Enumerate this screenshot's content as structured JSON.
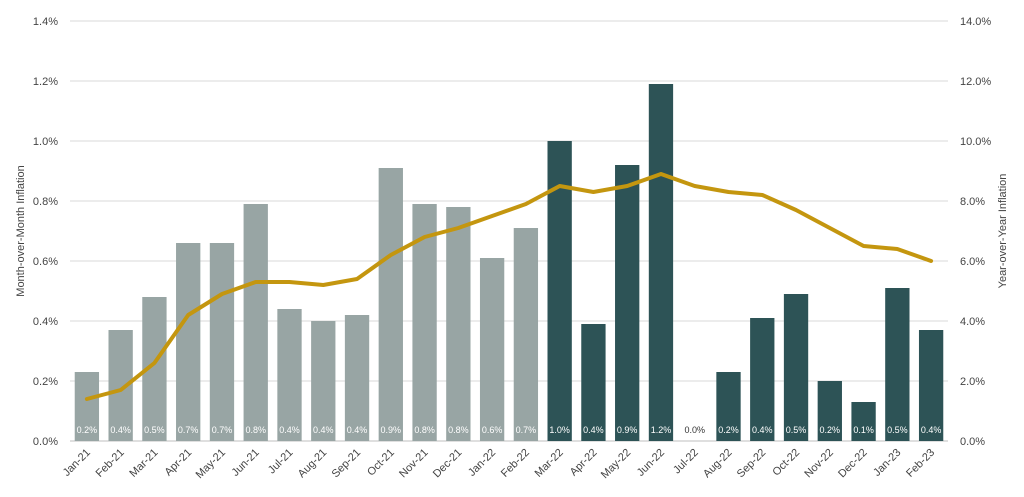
{
  "chart_data": {
    "type": "bar",
    "combo": "bar + line (dual axis)",
    "categories": [
      "Jan-21",
      "Feb-21",
      "Mar-21",
      "Apr-21",
      "May-21",
      "Jun-21",
      "Jul-21",
      "Aug-21",
      "Sep-21",
      "Oct-21",
      "Nov-21",
      "Dec-21",
      "Jan-22",
      "Feb-22",
      "Mar-22",
      "Apr-22",
      "May-22",
      "Jun-22",
      "Jul-22",
      "Aug-22",
      "Sep-22",
      "Oct-22",
      "Nov-22",
      "Dec-22",
      "Jan-23",
      "Feb-23"
    ],
    "series": [
      {
        "type": "bar",
        "axis": "left",
        "values": [
          0.23,
          0.37,
          0.48,
          0.66,
          0.66,
          0.79,
          0.44,
          0.4,
          0.42,
          0.91,
          0.79,
          0.78,
          0.61,
          0.71,
          1.0,
          0.39,
          0.92,
          1.19,
          0.0,
          0.23,
          0.41,
          0.49,
          0.2,
          0.13,
          0.51,
          0.37
        ],
        "labels": [
          "0.2%",
          "0.4%",
          "0.5%",
          "0.7%",
          "0.7%",
          "0.8%",
          "0.4%",
          "0.4%",
          "0.4%",
          "0.9%",
          "0.8%",
          "0.8%",
          "0.6%",
          "0.7%",
          "1.0%",
          "0.4%",
          "0.9%",
          "1.2%",
          "0.0%",
          "0.2%",
          "0.4%",
          "0.5%",
          "0.2%",
          "0.1%",
          "0.5%",
          "0.4%"
        ],
        "colors": [
          "#98a5a4",
          "#98a5a4",
          "#98a5a4",
          "#98a5a4",
          "#98a5a4",
          "#98a5a4",
          "#98a5a4",
          "#98a5a4",
          "#98a5a4",
          "#98a5a4",
          "#98a5a4",
          "#98a5a4",
          "#98a5a4",
          "#98a5a4",
          "#2d5356",
          "#2d5356",
          "#2d5356",
          "#2d5356",
          "#2d5356",
          "#2d5356",
          "#2d5356",
          "#2d5356",
          "#2d5356",
          "#2d5356",
          "#2d5356",
          "#2d5356"
        ]
      },
      {
        "type": "line",
        "axis": "right",
        "values": [
          1.4,
          1.7,
          2.6,
          4.2,
          4.9,
          5.3,
          5.3,
          5.2,
          5.4,
          6.2,
          6.8,
          7.1,
          7.5,
          7.9,
          8.5,
          8.3,
          8.5,
          8.9,
          8.5,
          8.3,
          8.2,
          7.7,
          7.1,
          6.5,
          6.4,
          6.0
        ],
        "color": "#c4960f"
      }
    ],
    "y_left": {
      "label": "Month-over-Month Inflation",
      "ylim": [
        0,
        1.4
      ],
      "ticks": [
        "0.0%",
        "0.2%",
        "0.4%",
        "0.6%",
        "0.8%",
        "1.0%",
        "1.2%",
        "1.4%"
      ]
    },
    "y_right": {
      "label": "Year-over-Year Inflation",
      "ylim": [
        0,
        14
      ],
      "ticks": [
        "0.0%",
        "2.0%",
        "4.0%",
        "6.0%",
        "8.0%",
        "10.0%",
        "12.0%",
        "14.0%"
      ]
    },
    "grid": true,
    "legend": "none"
  }
}
